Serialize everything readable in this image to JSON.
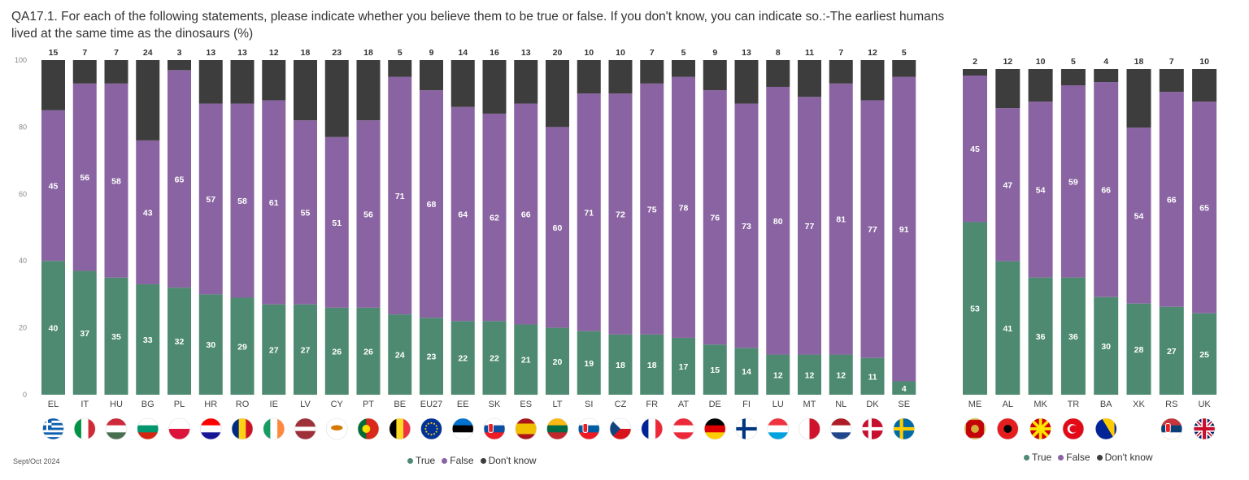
{
  "title": "QA17.1. For each of the following statements, please indicate whether you believe them to be true or false. If you don't know, you can indicate so.:-The earliest humans lived at the same time as the dinosaurs (%)",
  "footnote": "Sept/Oct 2024",
  "colors": {
    "true": "#4e8a72",
    "false": "#8a64a2",
    "dontknow": "#3d3d3d"
  },
  "legend": {
    "true": "True",
    "false": "False",
    "dontknow": "Don't know"
  },
  "chart_data": [
    {
      "type": "bar",
      "stacked": true,
      "title": "",
      "ylim": [
        0,
        100
      ],
      "yticks": [
        0,
        20,
        40,
        60,
        80,
        100
      ],
      "legend_position": "bottom-center",
      "categories": [
        "EL",
        "IT",
        "HU",
        "BG",
        "PL",
        "HR",
        "RO",
        "IE",
        "LV",
        "CY",
        "PT",
        "BE",
        "EU27",
        "EE",
        "SK",
        "ES",
        "LT",
        "SI",
        "CZ",
        "FR",
        "AT",
        "DE",
        "FI",
        "LU",
        "MT",
        "NL",
        "DK",
        "SE"
      ],
      "flag_icons": [
        "flag-greece-icon",
        "flag-italy-icon",
        "flag-hungary-icon",
        "flag-bulgaria-icon",
        "flag-poland-icon",
        "flag-croatia-icon",
        "flag-romania-icon",
        "flag-ireland-icon",
        "flag-latvia-icon",
        "flag-cyprus-icon",
        "flag-portugal-icon",
        "flag-belgium-icon",
        "flag-eu-icon",
        "flag-estonia-icon",
        "flag-slovakia-icon",
        "flag-spain-icon",
        "flag-lithuania-icon",
        "flag-slovenia-icon",
        "flag-czechia-icon",
        "flag-france-icon",
        "flag-austria-icon",
        "flag-germany-icon",
        "flag-finland-icon",
        "flag-luxembourg-icon",
        "flag-malta-icon",
        "flag-netherlands-icon",
        "flag-denmark-icon",
        "flag-sweden-icon"
      ],
      "series": [
        {
          "name": "True",
          "values": [
            40,
            37,
            35,
            33,
            32,
            30,
            29,
            27,
            27,
            26,
            26,
            24,
            23,
            22,
            22,
            21,
            20,
            19,
            18,
            18,
            17,
            15,
            14,
            12,
            12,
            12,
            11,
            4
          ]
        },
        {
          "name": "False",
          "values": [
            45,
            56,
            58,
            43,
            65,
            57,
            58,
            61,
            55,
            51,
            56,
            71,
            68,
            64,
            62,
            66,
            60,
            71,
            72,
            75,
            78,
            76,
            73,
            80,
            77,
            81,
            77,
            91
          ]
        },
        {
          "name": "Don't know",
          "values": [
            15,
            7,
            7,
            24,
            3,
            13,
            13,
            12,
            18,
            23,
            18,
            5,
            9,
            14,
            16,
            13,
            20,
            10,
            10,
            7,
            5,
            9,
            13,
            8,
            11,
            7,
            12,
            5
          ]
        }
      ]
    },
    {
      "type": "bar",
      "stacked": true,
      "title": "",
      "ylim": [
        0,
        100
      ],
      "legend_position": "bottom-center",
      "categories": [
        "ME",
        "AL",
        "MK",
        "TR",
        "BA",
        "XK",
        "RS",
        "UK"
      ],
      "flag_icons": [
        "flag-montenegro-icon",
        "flag-albania-icon",
        "flag-north-macedonia-icon",
        "flag-turkey-icon",
        "flag-bosnia-icon",
        "",
        "flag-serbia-icon",
        "flag-uk-icon"
      ],
      "series": [
        {
          "name": "True",
          "values": [
            53,
            41,
            36,
            36,
            30,
            28,
            27,
            25
          ]
        },
        {
          "name": "False",
          "values": [
            45,
            47,
            54,
            59,
            66,
            54,
            66,
            65
          ]
        },
        {
          "name": "Don't know",
          "values": [
            2,
            12,
            10,
            5,
            4,
            18,
            7,
            10
          ]
        }
      ]
    }
  ]
}
